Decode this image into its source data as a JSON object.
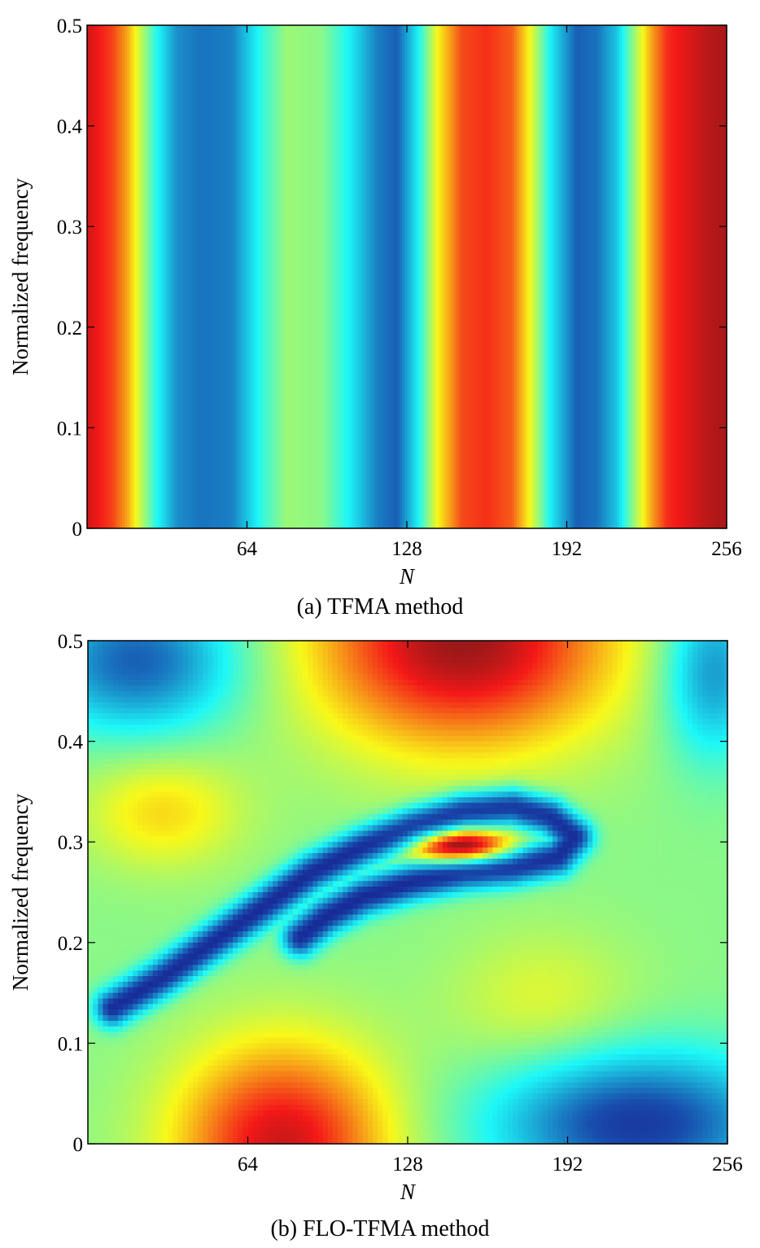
{
  "chart_data": [
    {
      "type": "heatmap",
      "caption": "(a) TFMA method",
      "xlabel": "N",
      "ylabel": "Normalized frequency",
      "xlim": [
        0,
        256
      ],
      "ylim": [
        0,
        0.5
      ],
      "x_ticks": [
        64,
        128,
        192,
        256
      ],
      "x_tick_labels": [
        "64",
        "128",
        "192",
        "256"
      ],
      "y_ticks": [
        0,
        0.1,
        0.2,
        0.3,
        0.4,
        0.5
      ],
      "y_tick_labels": [
        "0",
        "0.1",
        "0.2",
        "0.3",
        "0.4",
        "0.5"
      ],
      "colormap": "jet",
      "grid": false,
      "pattern": "vertical bands (constant along frequency)",
      "column_profile": {
        "n": [
          0,
          4,
          10,
          16,
          22,
          28,
          36,
          46,
          58,
          70,
          80,
          94,
          104,
          116,
          124,
          132,
          140,
          150,
          160,
          170,
          178,
          186,
          196,
          204,
          212,
          220,
          226,
          232,
          240,
          250,
          256
        ],
        "level": [
          0.92,
          0.88,
          0.83,
          0.72,
          0.55,
          0.38,
          0.22,
          0.18,
          0.2,
          0.4,
          0.52,
          0.5,
          0.38,
          0.2,
          0.15,
          0.35,
          0.62,
          0.82,
          0.85,
          0.8,
          0.6,
          0.35,
          0.15,
          0.18,
          0.3,
          0.55,
          0.72,
          0.85,
          0.9,
          0.95,
          0.96
        ]
      }
    },
    {
      "type": "heatmap",
      "caption": "(b) FLO-TFMA method",
      "xlabel": "N",
      "ylabel": "Normalized frequency",
      "xlim": [
        0,
        256
      ],
      "ylim": [
        0,
        0.5
      ],
      "x_ticks": [
        64,
        128,
        192,
        256
      ],
      "x_tick_labels": [
        "64",
        "128",
        "192",
        "256"
      ],
      "y_ticks": [
        0,
        0.1,
        0.2,
        0.3,
        0.4,
        0.5
      ],
      "y_tick_labels": [
        "0",
        "0.1",
        "0.2",
        "0.3",
        "0.4",
        "0.5"
      ],
      "colormap": "jet",
      "grid": false,
      "pattern": "smooth 2-D field with a diagonal low-valued ridge and a high peak near N=150, f=0.295",
      "features": {
        "baseline": 0.5,
        "blobs": [
          {
            "n": 150,
            "f": 0.5,
            "sn": 42,
            "sf": 0.075,
            "amp": 0.48
          },
          {
            "n": 78,
            "f": 0.0,
            "sn": 30,
            "sf": 0.07,
            "amp": 0.42
          },
          {
            "n": 30,
            "f": 0.33,
            "sn": 22,
            "sf": 0.04,
            "amp": 0.16
          },
          {
            "n": 182,
            "f": 0.14,
            "sn": 26,
            "sf": 0.05,
            "amp": 0.1
          },
          {
            "n": 20,
            "f": 0.48,
            "sn": 28,
            "sf": 0.05,
            "amp": -0.35
          },
          {
            "n": 250,
            "f": 0.47,
            "sn": 14,
            "sf": 0.06,
            "amp": -0.28
          },
          {
            "n": 220,
            "f": 0.02,
            "sn": 40,
            "sf": 0.05,
            "amp": -0.42
          },
          {
            "n": 150,
            "f": 0.295,
            "sn": 13,
            "sf": 0.012,
            "amp": 0.52
          }
        ],
        "ridge": {
          "n": [
            10,
            30,
            50,
            70,
            90,
            110,
            130,
            150,
            170,
            185,
            195,
            188,
            170,
            150,
            130,
            110,
            95,
            85
          ],
          "f": [
            0.135,
            0.165,
            0.2,
            0.235,
            0.27,
            0.295,
            0.315,
            0.33,
            0.335,
            0.325,
            0.305,
            0.285,
            0.275,
            0.27,
            0.26,
            0.245,
            0.225,
            0.205
          ],
          "depth": 0.46,
          "width_n": 5,
          "width_f": 0.013
        }
      }
    }
  ]
}
